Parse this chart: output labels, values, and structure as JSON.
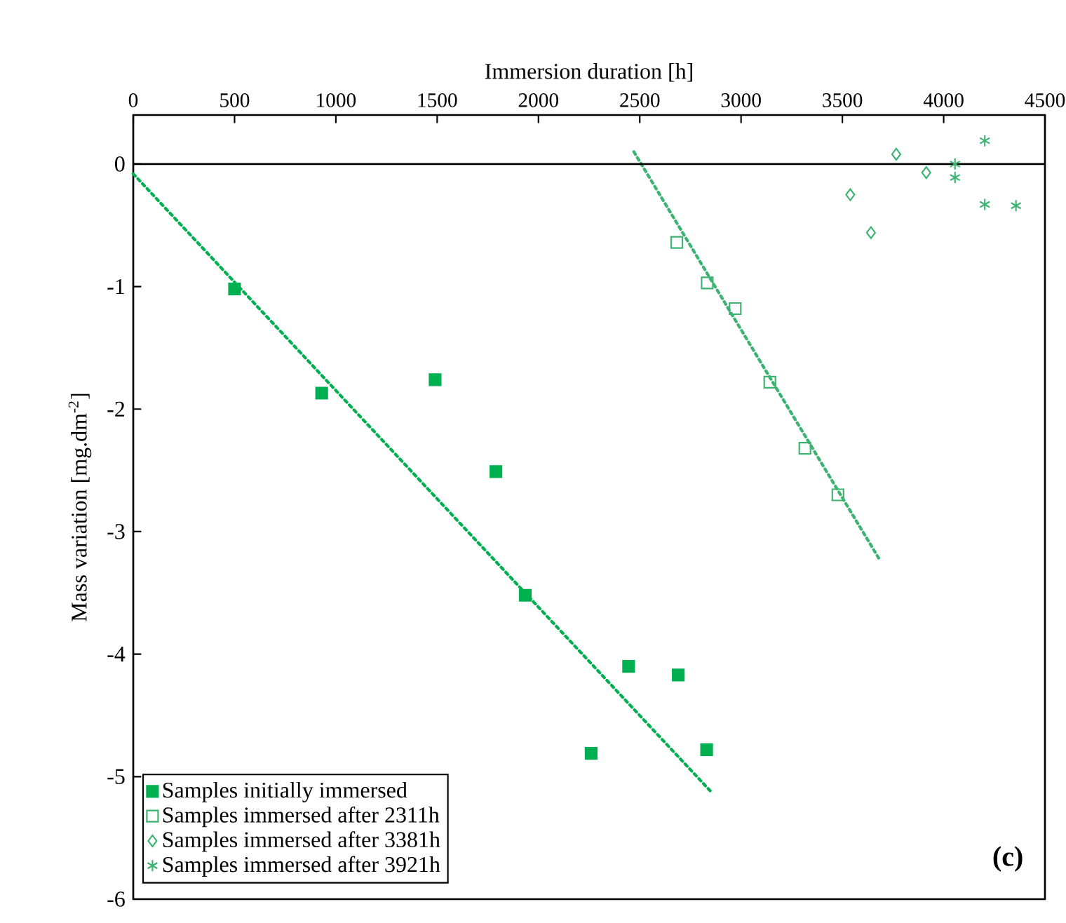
{
  "chart_data": {
    "type": "scatter",
    "xlabel": "Immersion duration [h]",
    "ylabel": "Mass variation [mg.dm$^{-2}$]",
    "xlim": [
      0,
      4500
    ],
    "ylim": [
      -6,
      0.4
    ],
    "xticks": [
      0,
      500,
      1000,
      1500,
      2000,
      2500,
      3000,
      3500,
      4000,
      4500
    ],
    "yticks": [
      -6,
      -5,
      -4,
      -3,
      -2,
      -1,
      0
    ],
    "grid": false,
    "legend": "bottom left",
    "ref_lines": [
      {
        "axis": "y",
        "value": 0,
        "color": "#000000",
        "line_style": "solid"
      }
    ],
    "annotations": [
      "**(c)**"
    ],
    "series": [
      {
        "name": "Samples initially immersed",
        "color": "#00b050",
        "marker": "square",
        "x": [
          500,
          930,
          1490,
          1790,
          1935,
          2445,
          2690,
          2260,
          2830
        ],
        "values": [
          -1.02,
          -1.87,
          -1.76,
          -2.51,
          -3.52,
          -4.1,
          -4.17,
          -4.81,
          -4.78
        ]
      },
      {
        "name": "Samples immersed after 2311h",
        "color": "#3cb371",
        "marker": "square",
        "x": [
          2683,
          2833,
          2971,
          3142,
          3315,
          3478
        ],
        "values": [
          -0.64,
          -0.97,
          -1.18,
          -1.78,
          -2.32,
          -2.7
        ]
      },
      {
        "name": "Samples immersed after 3381h",
        "color": "#3cb371",
        "marker": "diamond",
        "x": [
          3766,
          3914,
          3539,
          3641
        ],
        "values": [
          0.08,
          -0.07,
          -0.25,
          -0.56
        ]
      },
      {
        "name": "Samples immersed after 3921h",
        "color": "#3cb371",
        "marker": "cross",
        "x": [
          4203,
          4056,
          4056,
          4203,
          4357
        ],
        "values": [
          0.19,
          0.0,
          -0.11,
          -0.33,
          -0.34
        ]
      },
      {
        "type": "line",
        "color": "#00b050",
        "line_style": "dotted",
        "marker": "none",
        "x": [
          0,
          2850
        ],
        "values": [
          -0.08,
          -5.12
        ]
      },
      {
        "type": "line",
        "color": "#3cb371",
        "line_style": "dotted",
        "marker": "none",
        "x": [
          2471,
          3688
        ],
        "values": [
          0.1,
          -3.24
        ]
      }
    ]
  }
}
